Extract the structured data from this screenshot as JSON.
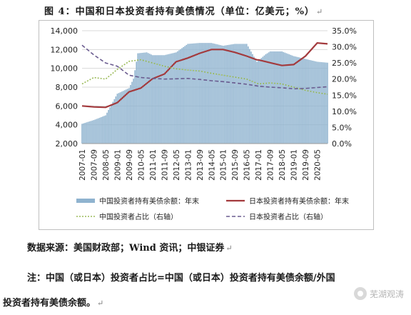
{
  "figure": {
    "title": "图 4：中国和日本投资者持有美债情况（单位：亿美元；%）",
    "para_mark": "↵"
  },
  "source": "数据来源：美国财政部；Wind 资讯；中银证券",
  "note_line1": "注：中国（或日本）投资者占比=中国（或日本）投资者持有美债余额/外国",
  "note_line2": "投资者持有美债余额。",
  "watermark": "芜湖观涛",
  "colors": {
    "china_bar": "#8fb3cf",
    "japan_line": "#a33a3d",
    "china_share": "#9bbb59",
    "japan_share": "#6a5b8f",
    "grid": "#d9d9d9",
    "axis_text": "#222222"
  },
  "chart_data": {
    "type": "bar",
    "title": "",
    "x_tick_labels": [
      "2007-01",
      "2007-09",
      "2008-05",
      "2009-01",
      "2009-09",
      "2010-05",
      "2011-01",
      "2011-09",
      "2012-05",
      "2013-01",
      "2013-09",
      "2014-05",
      "2015-01",
      "2015-09",
      "2016-05",
      "2017-01",
      "2017-09",
      "2018-05",
      "2019-01",
      "2019-09",
      "2020-05"
    ],
    "x_start": "2007-01",
    "x_end": "2020-12",
    "ylim_left": [
      2000,
      14000
    ],
    "yticks_left": [
      "2,000",
      "4,000",
      "6,000",
      "8,000",
      "10,000",
      "12,000",
      "14,000"
    ],
    "ylim_right": [
      0,
      35
    ],
    "yticks_right": [
      "0.0%",
      "5.0%",
      "10.0%",
      "15.0%",
      "20.0%",
      "25.0%",
      "30.0%",
      "35.0%"
    ],
    "grid": "horizontal",
    "legend_position": "bottom",
    "series": [
      {
        "name": "中国投资者持有美债余额：年末",
        "type": "bar",
        "axis": "left",
        "color": "#8fb3cf",
        "points": [
          [
            "2007-01",
            4100
          ],
          [
            "2007-09",
            4500
          ],
          [
            "2008-05",
            5000
          ],
          [
            "2009-01",
            7300
          ],
          [
            "2009-09",
            7900
          ],
          [
            "2009-12",
            8900
          ],
          [
            "2010-03",
            11600
          ],
          [
            "2010-09",
            11700
          ],
          [
            "2011-01",
            11400
          ],
          [
            "2011-09",
            11400
          ],
          [
            "2012-05",
            11700
          ],
          [
            "2013-01",
            12600
          ],
          [
            "2013-09",
            12700
          ],
          [
            "2014-05",
            12700
          ],
          [
            "2015-01",
            12400
          ],
          [
            "2015-09",
            12600
          ],
          [
            "2016-05",
            12600
          ],
          [
            "2016-12",
            10700
          ],
          [
            "2017-06",
            11500
          ],
          [
            "2017-09",
            11800
          ],
          [
            "2018-05",
            11800
          ],
          [
            "2019-01",
            11300
          ],
          [
            "2019-09",
            11000
          ],
          [
            "2020-05",
            10700
          ],
          [
            "2020-12",
            10600
          ]
        ]
      },
      {
        "name": "日本投资者持有美债余额：年末",
        "type": "line",
        "axis": "left",
        "color": "#a33a3d",
        "points": [
          [
            "2007-01",
            6000
          ],
          [
            "2007-09",
            5900
          ],
          [
            "2008-05",
            5850
          ],
          [
            "2009-01",
            6350
          ],
          [
            "2009-09",
            7500
          ],
          [
            "2010-05",
            7900
          ],
          [
            "2011-01",
            8900
          ],
          [
            "2011-09",
            9400
          ],
          [
            "2012-05",
            10700
          ],
          [
            "2013-01",
            11100
          ],
          [
            "2013-09",
            11600
          ],
          [
            "2014-05",
            12000
          ],
          [
            "2015-01",
            12000
          ],
          [
            "2015-09",
            11700
          ],
          [
            "2016-05",
            11300
          ],
          [
            "2016-12",
            10900
          ],
          [
            "2017-01",
            10900
          ],
          [
            "2017-09",
            10600
          ],
          [
            "2018-05",
            10300
          ],
          [
            "2019-01",
            10400
          ],
          [
            "2019-09",
            11300
          ],
          [
            "2020-05",
            12700
          ],
          [
            "2020-12",
            12600
          ]
        ]
      },
      {
        "name": "中国投资者占比（右轴）",
        "type": "line",
        "dash": "dotted",
        "axis": "right",
        "color": "#9bbb59",
        "points": [
          [
            "2007-01",
            18.5
          ],
          [
            "2007-09",
            20.5
          ],
          [
            "2008-05",
            20
          ],
          [
            "2009-01",
            23
          ],
          [
            "2009-09",
            25.5
          ],
          [
            "2010-05",
            26
          ],
          [
            "2011-01",
            25
          ],
          [
            "2011-09",
            24
          ],
          [
            "2012-05",
            23.2
          ],
          [
            "2013-01",
            22.8
          ],
          [
            "2013-09",
            22.5
          ],
          [
            "2014-05",
            21.8
          ],
          [
            "2015-01",
            21.2
          ],
          [
            "2015-09",
            20.6
          ],
          [
            "2016-05",
            20
          ],
          [
            "2017-01",
            18.5
          ],
          [
            "2017-09",
            18.8
          ],
          [
            "2018-05",
            18.5
          ],
          [
            "2019-01",
            17.5
          ],
          [
            "2019-09",
            16.5
          ],
          [
            "2020-05",
            15.8
          ],
          [
            "2020-12",
            15.3
          ]
        ]
      },
      {
        "name": "日本投资者占比（右轴）",
        "type": "line",
        "dash": "dashed",
        "axis": "right",
        "color": "#6a5b8f",
        "points": [
          [
            "2007-01",
            30.5
          ],
          [
            "2007-09",
            27.5
          ],
          [
            "2008-05",
            25
          ],
          [
            "2009-01",
            24
          ],
          [
            "2009-09",
            21.2
          ],
          [
            "2010-05",
            20.5
          ],
          [
            "2011-01",
            20.2
          ],
          [
            "2011-09",
            20
          ],
          [
            "2012-05",
            20.1
          ],
          [
            "2013-01",
            20.2
          ],
          [
            "2013-09",
            19.9
          ],
          [
            "2014-05",
            19.5
          ],
          [
            "2015-01",
            19.2
          ],
          [
            "2015-09",
            18.8
          ],
          [
            "2016-05",
            18.4
          ],
          [
            "2017-01",
            17.8
          ],
          [
            "2017-09",
            17.5
          ],
          [
            "2018-05",
            17.3
          ],
          [
            "2019-01",
            17
          ],
          [
            "2019-09",
            17.1
          ],
          [
            "2020-05",
            17.4
          ],
          [
            "2020-12",
            17.6
          ]
        ]
      }
    ]
  }
}
